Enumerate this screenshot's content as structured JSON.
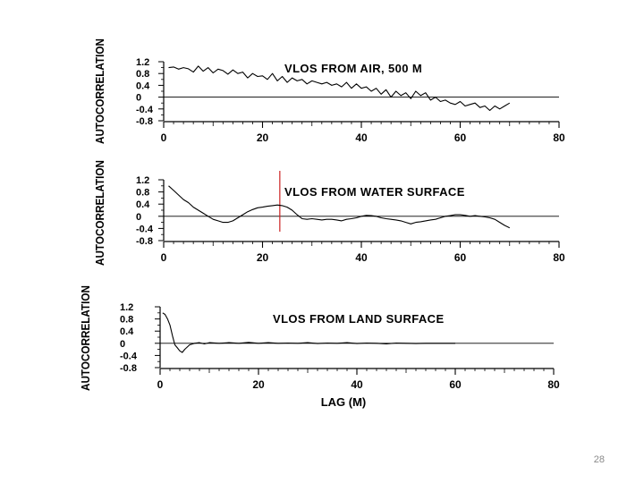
{
  "page_number": "28",
  "chart_data": [
    {
      "type": "line",
      "title": "VLOS FROM AIR,  500 M",
      "xlabel": "",
      "ylabel": "AUTOCORRELATION",
      "xlim": [
        0,
        80
      ],
      "ylim": [
        -0.8,
        1.2
      ],
      "xticks": [
        "0",
        "20",
        "40",
        "60",
        "80"
      ],
      "yticks": [
        "1.2",
        "0.8",
        "0.4",
        "0",
        "-0.4",
        "-0.8"
      ],
      "grid": false,
      "series": [
        {
          "values_x": [
            1,
            2,
            3,
            4,
            5,
            6,
            7,
            8,
            9,
            10,
            11,
            12,
            13,
            14,
            15,
            16,
            17,
            18,
            19,
            20,
            21,
            22,
            23,
            24,
            25,
            26,
            27,
            28,
            29,
            30,
            31,
            32,
            33,
            34,
            35,
            36,
            37,
            38,
            39,
            40,
            41,
            42,
            43,
            44,
            45,
            46,
            47,
            48,
            49,
            50,
            51,
            52,
            53,
            54,
            55,
            56,
            57,
            58,
            59,
            60,
            61,
            62,
            63,
            64,
            65,
            66,
            67,
            68,
            69,
            70
          ],
          "values_y": [
            1.0,
            1.02,
            0.95,
            1.0,
            0.96,
            0.85,
            1.05,
            0.88,
            1.0,
            0.82,
            0.95,
            0.9,
            0.78,
            0.92,
            0.8,
            0.85,
            0.65,
            0.8,
            0.7,
            0.72,
            0.6,
            0.8,
            0.55,
            0.7,
            0.5,
            0.65,
            0.55,
            0.6,
            0.45,
            0.55,
            0.5,
            0.45,
            0.5,
            0.4,
            0.45,
            0.35,
            0.5,
            0.3,
            0.45,
            0.3,
            0.35,
            0.2,
            0.3,
            0.1,
            0.25,
            0.0,
            0.2,
            0.05,
            0.15,
            -0.05,
            0.2,
            0.05,
            0.15,
            -0.1,
            0.0,
            -0.15,
            -0.1,
            -0.2,
            -0.25,
            -0.15,
            -0.3,
            -0.25,
            -0.2,
            -0.35,
            -0.3,
            -0.45,
            -0.3,
            -0.4,
            -0.3,
            -0.2
          ]
        }
      ]
    },
    {
      "type": "line",
      "title": "VLOS FROM WATER SURFACE",
      "xlabel": "",
      "ylabel": "AUTOCORRELATION",
      "xlim": [
        0,
        80
      ],
      "ylim": [
        -0.8,
        1.2
      ],
      "xticks": [
        "0",
        "20",
        "40",
        "60",
        "80"
      ],
      "yticks": [
        "1.2",
        "0.8",
        "0.4",
        "0",
        "-0.4",
        "-0.8"
      ],
      "grid": false,
      "marker_line_x": 23.5,
      "marker_line_color": "#cc2222",
      "series": [
        {
          "values_x": [
            1,
            2,
            3,
            4,
            5,
            6,
            7,
            8,
            9,
            10,
            11,
            12,
            13,
            14,
            15,
            16,
            17,
            18,
            19,
            20,
            21,
            22,
            23,
            24,
            25,
            26,
            27,
            28,
            29,
            30,
            31,
            32,
            33,
            34,
            35,
            36,
            37,
            38,
            39,
            40,
            41,
            42,
            43,
            44,
            45,
            46,
            47,
            48,
            49,
            50,
            51,
            52,
            53,
            54,
            55,
            56,
            57,
            58,
            59,
            60,
            61,
            62,
            63,
            64,
            65,
            66,
            67,
            68,
            69,
            70
          ],
          "values_y": [
            1.0,
            0.85,
            0.7,
            0.55,
            0.45,
            0.3,
            0.2,
            0.1,
            0.0,
            -0.1,
            -0.15,
            -0.2,
            -0.2,
            -0.15,
            -0.05,
            0.05,
            0.15,
            0.22,
            0.28,
            0.3,
            0.33,
            0.35,
            0.37,
            0.35,
            0.3,
            0.2,
            0.05,
            -0.08,
            -0.1,
            -0.08,
            -0.1,
            -0.12,
            -0.1,
            -0.1,
            -0.12,
            -0.15,
            -0.1,
            -0.08,
            -0.05,
            0.0,
            0.03,
            0.02,
            0.0,
            -0.05,
            -0.08,
            -0.1,
            -0.12,
            -0.15,
            -0.2,
            -0.25,
            -0.2,
            -0.18,
            -0.15,
            -0.12,
            -0.1,
            -0.05,
            0.0,
            0.02,
            0.05,
            0.05,
            0.03,
            0.0,
            0.02,
            0.0,
            -0.02,
            -0.05,
            -0.1,
            -0.2,
            -0.3,
            -0.38
          ]
        }
      ]
    },
    {
      "type": "line",
      "title": "VLOS FROM LAND SURFACE",
      "xlabel": "LAG (M)",
      "ylabel": "AUTOCORRELATION",
      "xlim": [
        0,
        80
      ],
      "ylim": [
        -0.8,
        1.2
      ],
      "xticks": [
        "0",
        "20",
        "40",
        "60",
        "80"
      ],
      "yticks": [
        "1.2",
        "0.8",
        "0.4",
        "0",
        "-0.4",
        "-0.8"
      ],
      "grid": false,
      "series": [
        {
          "values_x": [
            0.5,
            1,
            1.5,
            2,
            2.5,
            3,
            3.5,
            4,
            4.5,
            5,
            6,
            7,
            8,
            9,
            10,
            12,
            14,
            16,
            18,
            20,
            22,
            24,
            26,
            28,
            30,
            32,
            34,
            36,
            38,
            40,
            42,
            44,
            46,
            48,
            50,
            52,
            54,
            56,
            58,
            60
          ],
          "values_y": [
            1.0,
            0.95,
            0.8,
            0.6,
            0.25,
            -0.05,
            -0.15,
            -0.25,
            -0.3,
            -0.2,
            -0.05,
            0.0,
            0.02,
            -0.02,
            0.02,
            0.0,
            0.02,
            0.0,
            0.03,
            0.0,
            0.02,
            0.0,
            0.01,
            0.0,
            0.02,
            -0.01,
            0.01,
            0.0,
            0.02,
            -0.01,
            0.01,
            0.0,
            -0.02,
            0.01,
            0.0,
            -0.01,
            0.0,
            0.0,
            0.0,
            0.0
          ]
        }
      ]
    }
  ]
}
